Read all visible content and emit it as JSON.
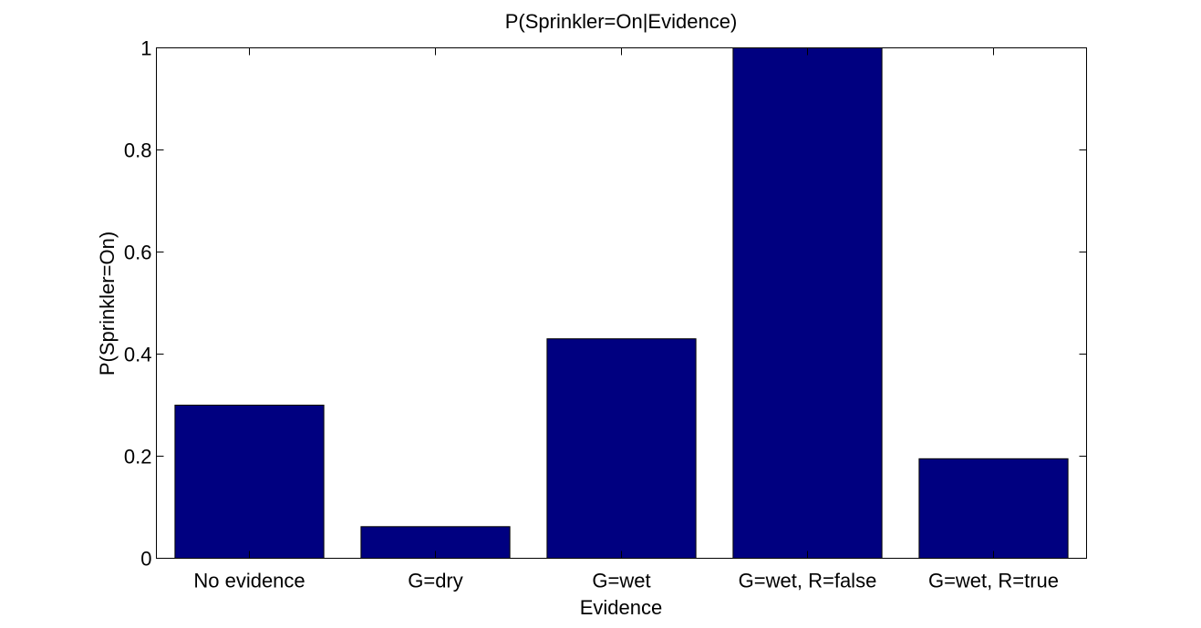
{
  "chart_data": {
    "type": "bar",
    "title": "P(Sprinkler=On|Evidence)",
    "xlabel": "Evidence",
    "ylabel": "P(Sprinkler=On)",
    "categories": [
      "No evidence",
      "G=dry",
      "G=wet",
      "G=wet, R=false",
      "G=wet, R=true"
    ],
    "values": [
      0.3,
      0.062,
      0.43,
      1.0,
      0.195
    ],
    "ylim": [
      0,
      1
    ],
    "yticks": [
      0,
      0.2,
      0.4,
      0.6,
      0.8,
      1
    ],
    "ytick_labels": [
      "0",
      "0.2",
      "0.4",
      "0.6",
      "0.8",
      "1"
    ],
    "bar_color": "#000080",
    "grid": false,
    "legend": "none"
  }
}
